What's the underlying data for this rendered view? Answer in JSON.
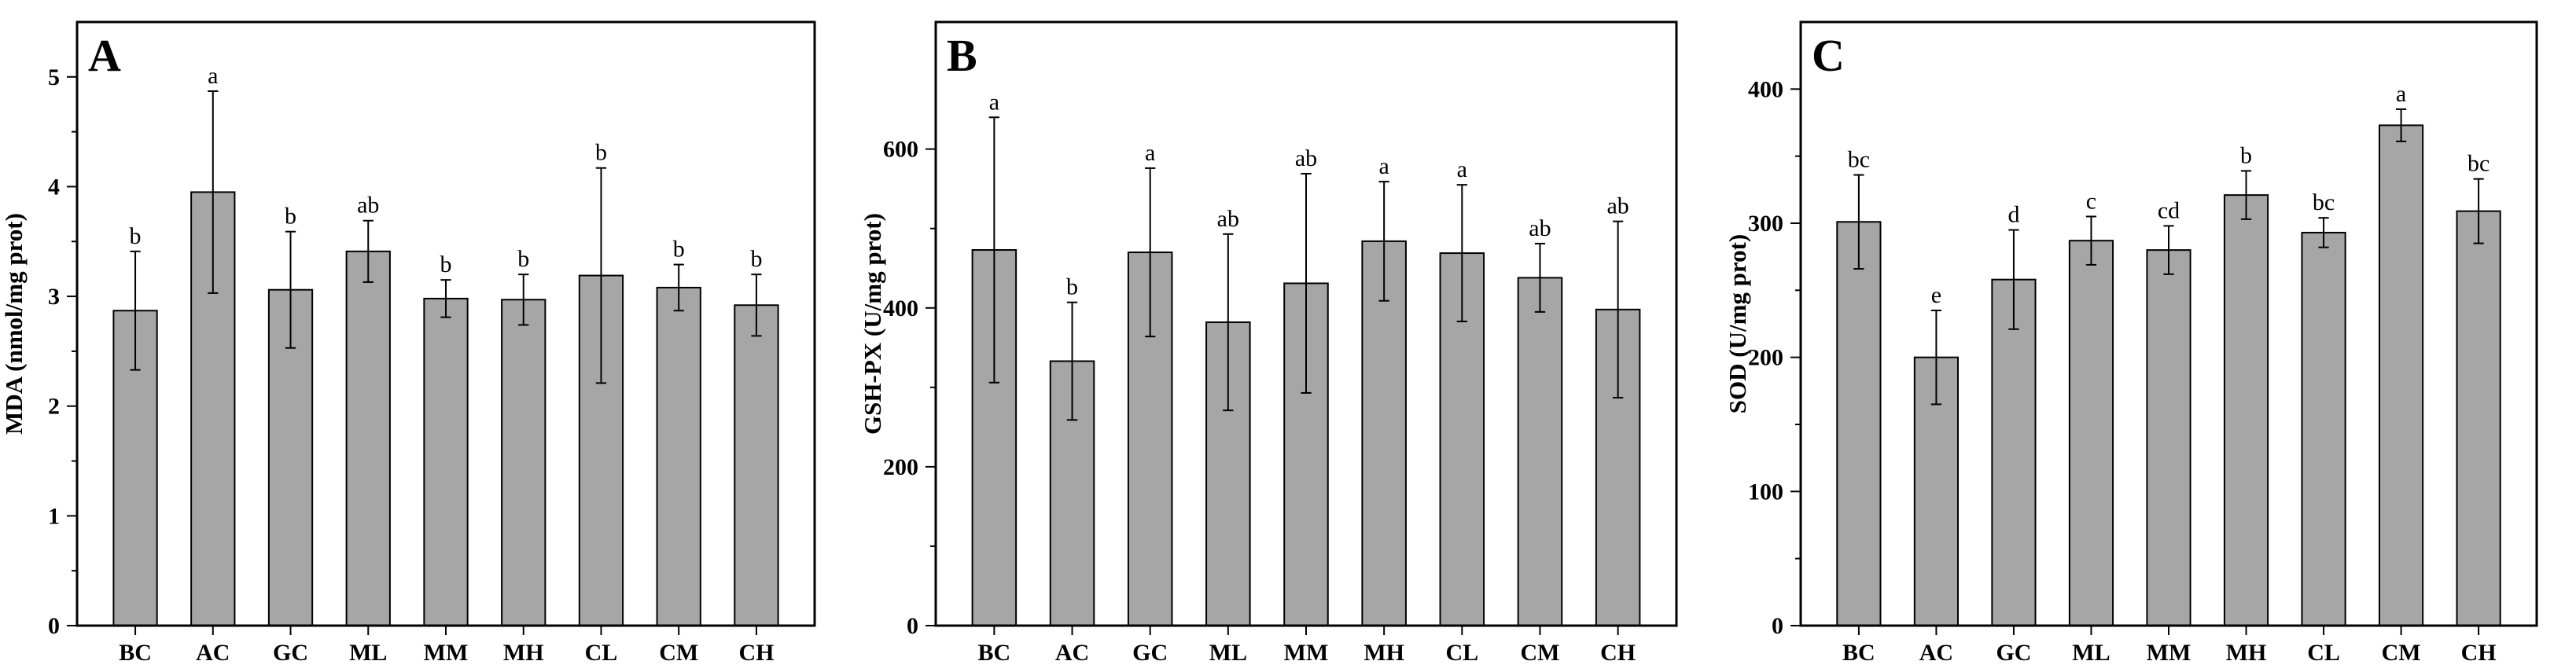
{
  "chart_data": [
    {
      "type": "bar",
      "panel_label": "A",
      "title": "",
      "xlabel": "",
      "ylabel": "MDA (nmol/mg prot)",
      "categories": [
        "BC",
        "AC",
        "GC",
        "ML",
        "MM",
        "MH",
        "CL",
        "CM",
        "CH"
      ],
      "values": [
        2.87,
        3.95,
        3.06,
        3.41,
        2.98,
        2.97,
        3.19,
        3.08,
        2.92
      ],
      "errors": [
        0.54,
        0.92,
        0.53,
        0.28,
        0.17,
        0.23,
        0.98,
        0.21,
        0.28
      ],
      "significance": [
        "b",
        "a",
        "b",
        "ab",
        "b",
        "b",
        "b",
        "b",
        "b"
      ],
      "ylim": [
        0,
        5.5
      ],
      "yticks": [
        0,
        1,
        2,
        3,
        4,
        5
      ],
      "yticklabels": [
        "0",
        "1",
        "2",
        "3",
        "4",
        "5"
      ],
      "bar_color": "#a6a6a6",
      "grid": false
    },
    {
      "type": "bar",
      "panel_label": "B",
      "title": "",
      "xlabel": "",
      "ylabel": "GSH-PX (U/mg prot)",
      "categories": [
        "BC",
        "AC",
        "GC",
        "ML",
        "MM",
        "MH",
        "CL",
        "CM",
        "CH"
      ],
      "values": [
        473,
        333,
        470,
        382,
        431,
        484,
        469,
        438,
        398
      ],
      "errors": [
        167,
        74,
        106,
        111,
        138,
        75,
        86,
        43,
        111
      ],
      "significance": [
        "a",
        "b",
        "a",
        "ab",
        "ab",
        "a",
        "a",
        "ab",
        "ab"
      ],
      "ylim": [
        0,
        760
      ],
      "yticks": [
        0,
        200,
        400,
        600
      ],
      "yticklabels": [
        "0",
        "200",
        "400",
        "600"
      ],
      "bar_color": "#a6a6a6",
      "grid": false
    },
    {
      "type": "bar",
      "panel_label": "C",
      "title": "",
      "xlabel": "",
      "ylabel": "SOD (U/mg prot)",
      "categories": [
        "BC",
        "AC",
        "GC",
        "ML",
        "MM",
        "MH",
        "CL",
        "CM",
        "CH"
      ],
      "values": [
        301,
        200,
        258,
        287,
        280,
        321,
        293,
        373,
        309
      ],
      "errors": [
        35,
        35,
        37,
        18,
        18,
        18,
        11,
        12,
        24
      ],
      "significance": [
        "bc",
        "e",
        "d",
        "c",
        "cd",
        "b",
        "bc",
        "a",
        "bc"
      ],
      "ylim": [
        0,
        450
      ],
      "yticks": [
        0,
        100,
        200,
        300,
        400
      ],
      "yticklabels": [
        "0",
        "100",
        "200",
        "300",
        "400"
      ],
      "bar_color": "#a6a6a6",
      "grid": false
    }
  ]
}
